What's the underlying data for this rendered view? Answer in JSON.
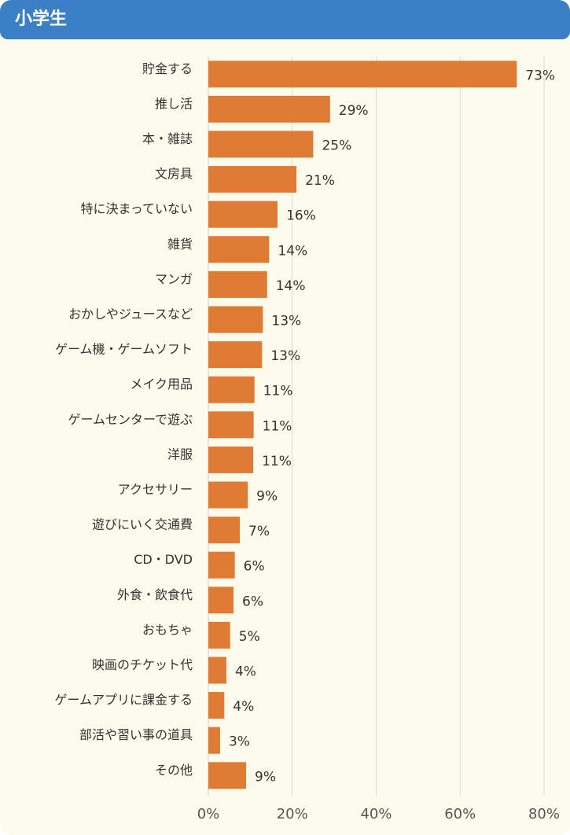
{
  "header": {
    "title": "小学生"
  },
  "colors": {
    "header_bg": "#3b7fc4",
    "card_bg": "#fdfbec",
    "bar": "#e07b34",
    "grid": "#dcdcd0"
  },
  "chart_data": {
    "type": "bar",
    "orientation": "horizontal",
    "title": "",
    "xlabel": "",
    "ylabel": "",
    "xlim": [
      0,
      80
    ],
    "x_ticks": [
      0,
      20,
      40,
      60,
      80
    ],
    "x_tick_labels": [
      "0%",
      "20%",
      "40%",
      "60%",
      "80%"
    ],
    "grid": true,
    "categories": [
      "貯金する",
      "推し活",
      "本・雑誌",
      "文房具",
      "特に決まっていない",
      "雑貨",
      "マンガ",
      "おかしやジュースなど",
      "ゲーム機・ゲームソフト",
      "メイク用品",
      "ゲームセンターで遊ぶ",
      "洋服",
      "アクセサリー",
      "遊びにいく交通費",
      "CD・DVD",
      "外食・飲食代",
      "おもちゃ",
      "映画のチケット代",
      "ゲームアプリに課金する",
      "部活や習い事の道具",
      "その他"
    ],
    "values": [
      73.5,
      29,
      25,
      21,
      16.5,
      14.5,
      14,
      13,
      12.8,
      11,
      10.8,
      10.7,
      9.4,
      7.5,
      6.3,
      6,
      5.2,
      4.3,
      3.8,
      2.8,
      9
    ],
    "labels": [
      "73%",
      "29%",
      "25%",
      "21%",
      "16%",
      "14%",
      "14%",
      "13%",
      "13%",
      "11%",
      "11%",
      "11%",
      "9%",
      "7%",
      "6%",
      "6%",
      "5%",
      "4%",
      "4%",
      "3%",
      "9%"
    ]
  }
}
